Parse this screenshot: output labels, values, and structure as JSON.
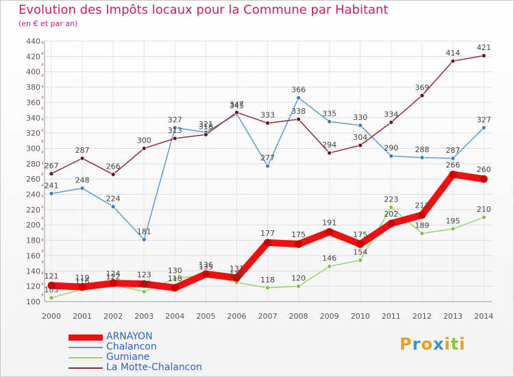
{
  "title": "Evolution des Impôts locaux pour la Commune par Habitant",
  "subtitle": "(en € et par an)",
  "logo": {
    "text": "Proxiti",
    "letters": [
      {
        "ch": "P",
        "color": "#e8a020"
      },
      {
        "ch": "r",
        "color": "#3c8fd8"
      },
      {
        "ch": "o",
        "color": "#e8a020"
      },
      {
        "ch": "x",
        "color": "#3c8fd8"
      },
      {
        "ch": "i",
        "color": "#e8a020"
      },
      {
        "ch": "t",
        "color": "#8cc63e"
      },
      {
        "ch": "i",
        "color": "#e8a020"
      }
    ]
  },
  "chart_data": {
    "type": "line",
    "title": "Evolution des Impôts locaux pour la Commune par Habitant",
    "subtitle": "(en € et par an)",
    "x": [
      "2000",
      "2001",
      "2002",
      "2003",
      "2004",
      "2005",
      "2006",
      "2007",
      "2008",
      "2009",
      "2010",
      "2011",
      "2012",
      "2013",
      "2014"
    ],
    "ylim": [
      100,
      440
    ],
    "yticks": [
      100,
      120,
      140,
      160,
      180,
      200,
      220,
      240,
      260,
      280,
      300,
      320,
      340,
      360,
      380,
      400,
      420,
      440
    ],
    "grid": true,
    "legend_position": "bottom-left",
    "series": [
      {
        "name": "ARNAYON",
        "color": "#ee1111",
        "marker": "#cc0000",
        "emphasis": true,
        "values": [
          121,
          119,
          124,
          123,
          118,
          136,
          131,
          177,
          175,
          191,
          175,
          202,
          213,
          266,
          260
        ],
        "labels": [
          "121",
          "119",
          "124",
          "123",
          "118",
          "136",
          "131",
          "177",
          "175",
          "191",
          "175",
          "202",
          "213",
          "266",
          "260"
        ]
      },
      {
        "name": "Chalancon",
        "color": "#5b9bd5",
        "marker": "#3a7bbf",
        "values": [
          241,
          248,
          224,
          181,
          327,
          321,
          345,
          277,
          366,
          335,
          330,
          290,
          288,
          287,
          327
        ],
        "labels": [
          "241",
          "248",
          "224",
          "181",
          "327",
          "321",
          "345",
          "277",
          "366",
          "335",
          "330",
          "290",
          "288",
          "287",
          "327"
        ]
      },
      {
        "name": "Gumiane",
        "color": "#9bd46a",
        "marker": "#7bc043",
        "values": [
          105,
          116,
          122,
          113,
          130,
          135,
          125,
          118,
          120,
          146,
          154,
          223,
          189,
          195,
          210
        ],
        "labels": [
          "105",
          "116",
          "122",
          "113",
          "130",
          "135",
          "125",
          "118",
          "120",
          "146",
          "154",
          "223",
          "189",
          "195",
          "210"
        ]
      },
      {
        "name": "La Motte-Chalancon",
        "color": "#8b2a3a",
        "marker": "#6b1020",
        "values": [
          267,
          287,
          266,
          300,
          313,
          318,
          347,
          333,
          338,
          294,
          304,
          334,
          369,
          414,
          421
        ],
        "labels": [
          "267",
          "287",
          "266",
          "300",
          "313",
          "318",
          "347",
          "333",
          "338",
          "294",
          "304",
          "334",
          "369",
          "414",
          "421"
        ]
      }
    ]
  }
}
